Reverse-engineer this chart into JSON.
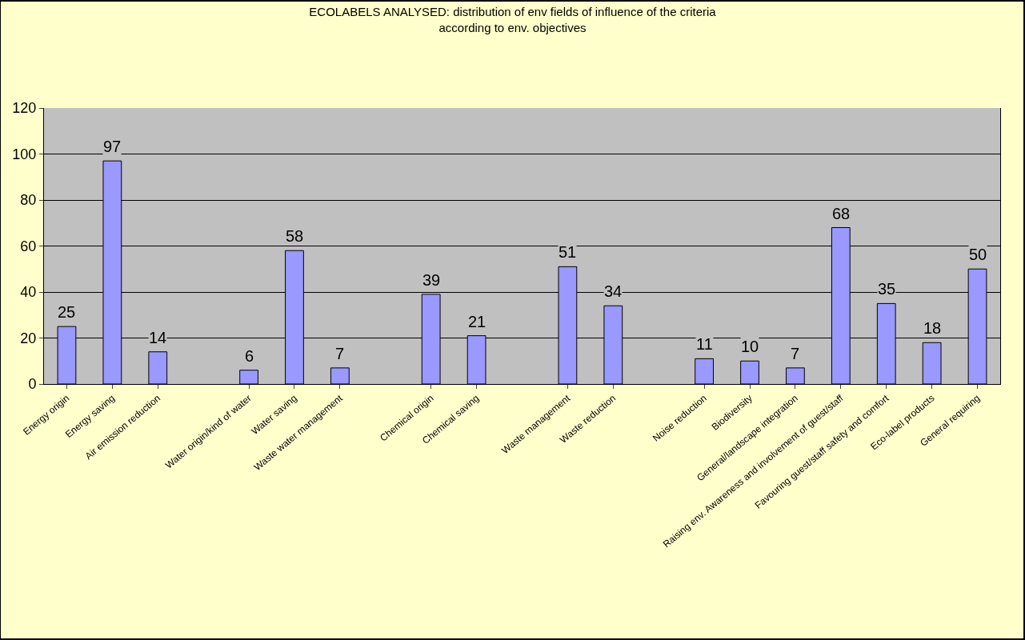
{
  "chart_data": {
    "type": "bar",
    "title": "ECOLABELS ANALYSED: distribution of env fields of influence of the criteria\naccording to env. objectives",
    "categories": [
      "Energy origin",
      "Energy saving",
      "Air emission reduction",
      null,
      "Water origin/kind of water",
      "Water saving",
      "Waste water management",
      null,
      "Chemical origin",
      "Chemical saving",
      null,
      "Waste management",
      "Waste reduction",
      null,
      "Noise reduction",
      "Biodiversity",
      "General/landscape integration",
      "Raising env. Awareness and involvement of guest/staff",
      "Favouring guest/staff safety and comfort",
      "Eco-label products",
      "General requiring"
    ],
    "values": [
      25,
      97,
      14,
      null,
      6,
      58,
      7,
      null,
      39,
      21,
      null,
      51,
      34,
      null,
      11,
      10,
      7,
      68,
      35,
      18,
      50
    ],
    "color": "#9999ff",
    "ylim": [
      0,
      120
    ],
    "yticks": [
      0,
      20,
      40,
      60,
      80,
      100,
      120
    ],
    "grid": "y",
    "data_labels": true,
    "legend": false
  }
}
